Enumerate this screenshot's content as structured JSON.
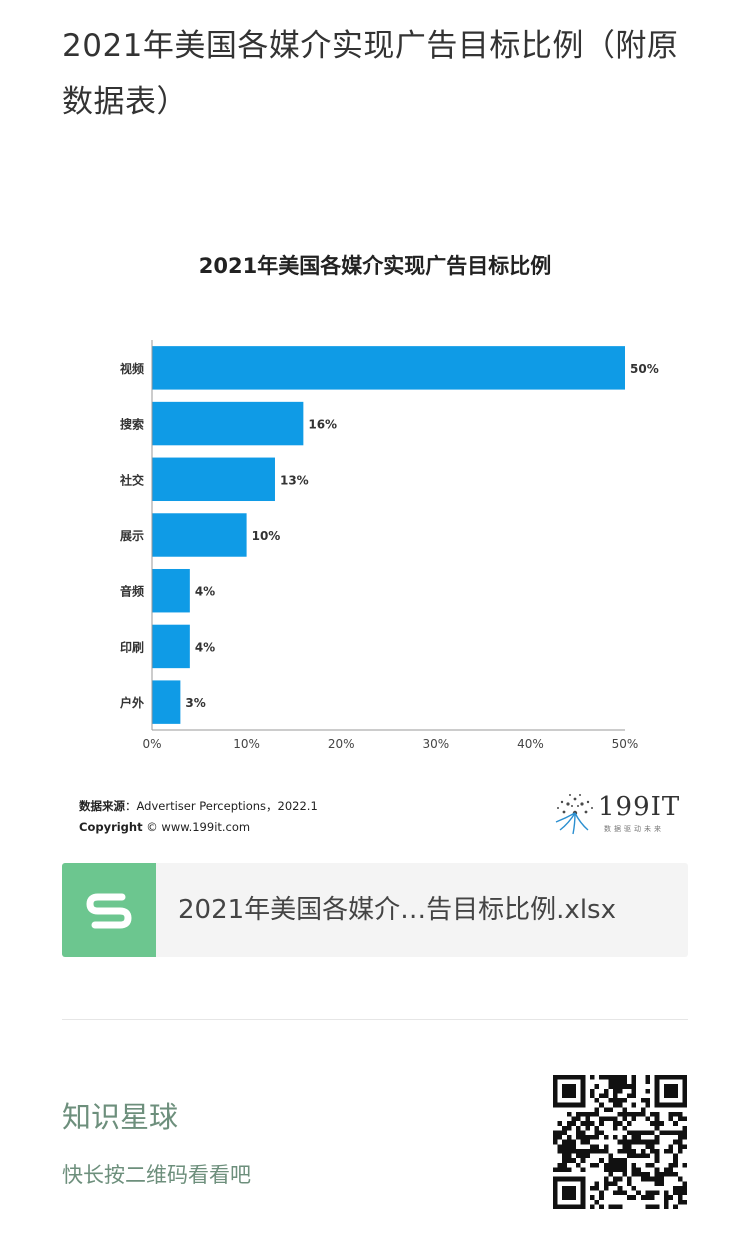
{
  "page": {
    "title": "2021年美国各媒介实现广告目标比例（附原数据表）"
  },
  "chart_data": {
    "type": "bar",
    "orientation": "horizontal",
    "title": "2021年美国各媒介实现广告目标比例",
    "categories": [
      "视频",
      "搜索",
      "社交",
      "展示",
      "音频",
      "印刷",
      "户外"
    ],
    "values": [
      50,
      16,
      13,
      10,
      4,
      4,
      3
    ],
    "value_labels": [
      "50%",
      "16%",
      "13%",
      "10%",
      "4%",
      "4%",
      "3%"
    ],
    "xlim": [
      0,
      50
    ],
    "x_ticks": [
      "0%",
      "10%",
      "20%",
      "30%",
      "40%",
      "50%"
    ],
    "bar_color": "#0f9be6",
    "grid": false,
    "legend": "none"
  },
  "source": {
    "label": "数据来源",
    "text": "：Advertiser Perceptions，2022.1",
    "copyright_label": "Copyright",
    "copyright_text": "© www.199it.com"
  },
  "brand": {
    "name": "199IT",
    "tagline": "数据驱动未来"
  },
  "attachment": {
    "file_name": "2021年美国各媒介…告目标比例.xlsx",
    "icon": "spreadsheet-s-icon",
    "icon_color": "#6cc68f"
  },
  "promo": {
    "title": "知识星球",
    "subtitle": "快长按二维码看看吧",
    "qr_icon": "qr-code-icon",
    "text_color": "#6d8f7c"
  }
}
